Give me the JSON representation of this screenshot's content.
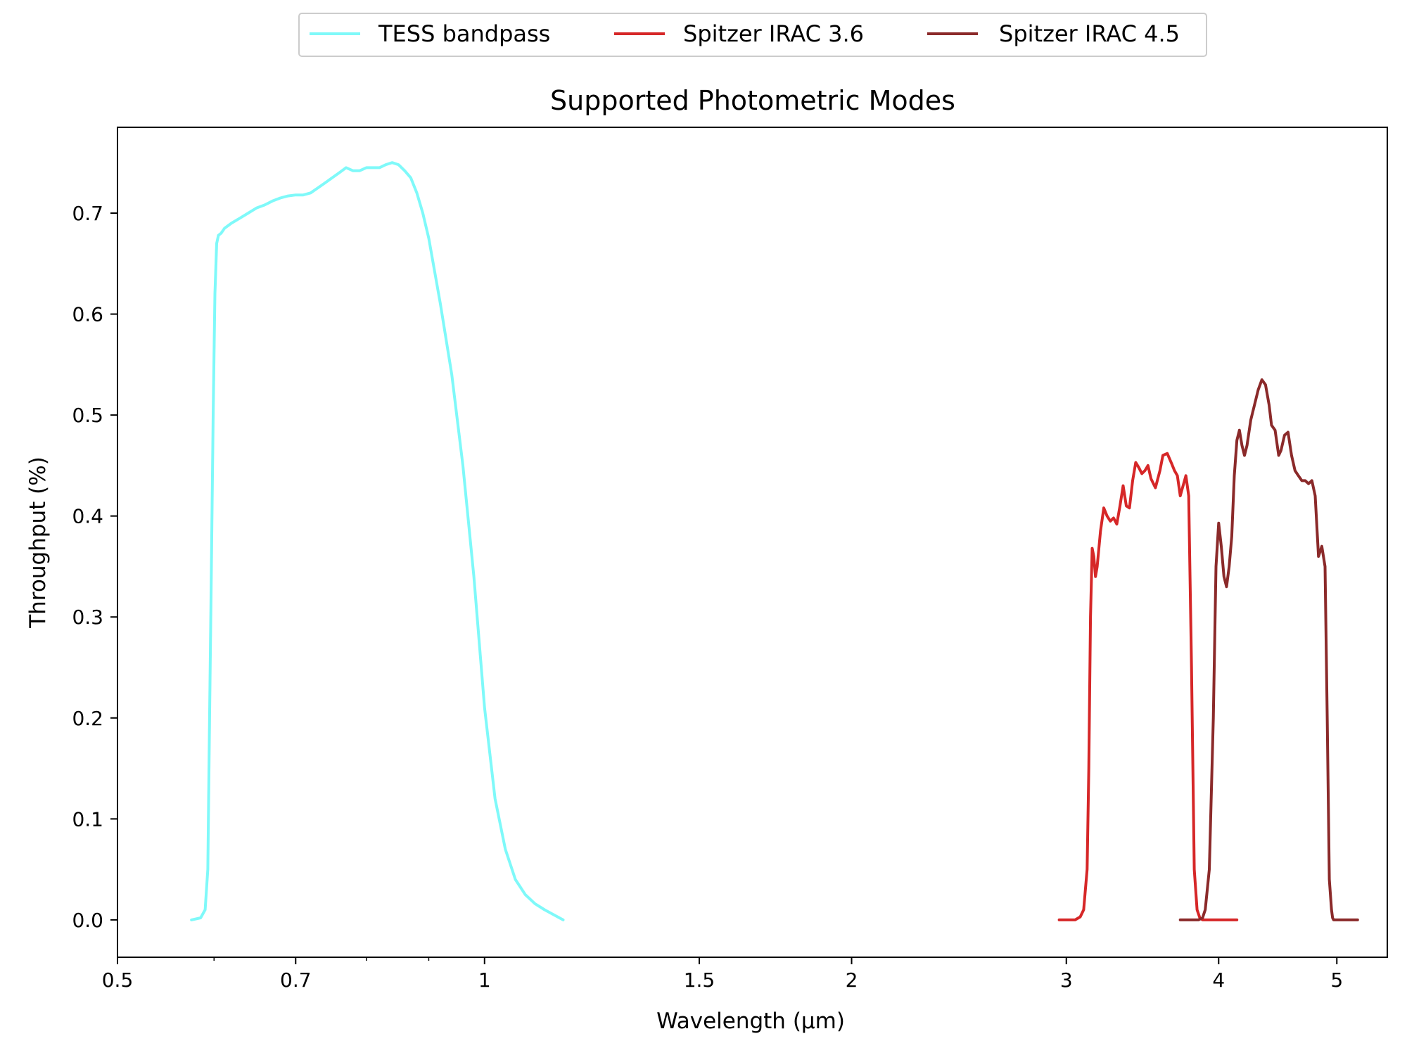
{
  "chart_data": {
    "type": "line",
    "title": "Supported Photometric Modes",
    "xlabel": "Wavelength (μm)",
    "ylabel": "Throughput (%)",
    "x_scale": "log",
    "xlim": [
      0.5,
      5.5
    ],
    "ylim": [
      -0.037,
      0.785
    ],
    "x_ticks": [
      {
        "value": 0.5,
        "label": "0.5"
      },
      {
        "value": 0.7,
        "label": "0.7"
      },
      {
        "value": 1,
        "label": "1"
      },
      {
        "value": 1.5,
        "label": "1.5"
      },
      {
        "value": 2,
        "label": "2"
      },
      {
        "value": 3,
        "label": "3"
      },
      {
        "value": 4,
        "label": "4"
      },
      {
        "value": 5,
        "label": "5"
      }
    ],
    "x_minor_ticks": [
      0.6,
      0.8,
      0.9
    ],
    "y_ticks": [
      {
        "value": 0.0,
        "label": "0.0"
      },
      {
        "value": 0.1,
        "label": "0.1"
      },
      {
        "value": 0.2,
        "label": "0.2"
      },
      {
        "value": 0.3,
        "label": "0.3"
      },
      {
        "value": 0.4,
        "label": "0.4"
      },
      {
        "value": 0.5,
        "label": "0.5"
      },
      {
        "value": 0.6,
        "label": "0.6"
      },
      {
        "value": 0.7,
        "label": "0.7"
      }
    ],
    "grid": false,
    "legend_position": "top-center, outside plot, horizontal",
    "series": [
      {
        "name": "TESS bandpass",
        "color": "#7ff9f9",
        "x": [
          0.575,
          0.585,
          0.59,
          0.593,
          0.595,
          0.597,
          0.599,
          0.601,
          0.603,
          0.605,
          0.608,
          0.612,
          0.62,
          0.63,
          0.64,
          0.65,
          0.66,
          0.67,
          0.68,
          0.69,
          0.7,
          0.71,
          0.72,
          0.73,
          0.74,
          0.75,
          0.76,
          0.77,
          0.78,
          0.79,
          0.8,
          0.81,
          0.82,
          0.83,
          0.84,
          0.85,
          0.86,
          0.87,
          0.88,
          0.89,
          0.9,
          0.92,
          0.94,
          0.96,
          0.98,
          1.0,
          1.02,
          1.04,
          1.06,
          1.08,
          1.1,
          1.12,
          1.14,
          1.16
        ],
        "y": [
          0.0,
          0.002,
          0.01,
          0.05,
          0.2,
          0.35,
          0.5,
          0.62,
          0.67,
          0.678,
          0.68,
          0.685,
          0.69,
          0.695,
          0.7,
          0.705,
          0.708,
          0.712,
          0.715,
          0.717,
          0.718,
          0.718,
          0.72,
          0.725,
          0.73,
          0.735,
          0.74,
          0.745,
          0.742,
          0.742,
          0.745,
          0.745,
          0.745,
          0.748,
          0.75,
          0.748,
          0.742,
          0.735,
          0.72,
          0.7,
          0.675,
          0.61,
          0.54,
          0.45,
          0.34,
          0.21,
          0.12,
          0.07,
          0.04,
          0.025,
          0.016,
          0.01,
          0.005,
          0.0
        ]
      },
      {
        "name": "Spitzer IRAC 3.6",
        "color": "#d62728",
        "x": [
          2.96,
          3.0,
          3.05,
          3.08,
          3.1,
          3.12,
          3.13,
          3.14,
          3.15,
          3.16,
          3.17,
          3.18,
          3.2,
          3.22,
          3.24,
          3.26,
          3.28,
          3.3,
          3.32,
          3.34,
          3.36,
          3.38,
          3.4,
          3.42,
          3.44,
          3.46,
          3.48,
          3.5,
          3.52,
          3.55,
          3.58,
          3.6,
          3.63,
          3.66,
          3.68,
          3.7,
          3.72,
          3.74,
          3.76,
          3.78,
          3.8,
          3.82,
          3.84,
          3.86,
          3.88,
          3.9,
          3.91,
          3.93,
          3.95,
          4.0,
          4.05,
          4.14
        ],
        "y": [
          0.0,
          0.0,
          0.0,
          0.003,
          0.01,
          0.05,
          0.15,
          0.3,
          0.368,
          0.36,
          0.34,
          0.35,
          0.385,
          0.408,
          0.4,
          0.395,
          0.398,
          0.392,
          0.41,
          0.43,
          0.41,
          0.408,
          0.435,
          0.453,
          0.448,
          0.442,
          0.445,
          0.45,
          0.437,
          0.428,
          0.445,
          0.46,
          0.462,
          0.452,
          0.445,
          0.44,
          0.42,
          0.43,
          0.44,
          0.42,
          0.25,
          0.05,
          0.01,
          0.002,
          0.0,
          0.0,
          0.0,
          0.0,
          0.0,
          0.0,
          0.0,
          0.0
        ]
      },
      {
        "name": "Spitzer IRAC 4.5",
        "color": "#8b2a2a",
        "x": [
          3.72,
          3.8,
          3.85,
          3.88,
          3.9,
          3.93,
          3.96,
          3.98,
          4.0,
          4.02,
          4.04,
          4.06,
          4.08,
          4.1,
          4.12,
          4.14,
          4.16,
          4.18,
          4.2,
          4.22,
          4.25,
          4.28,
          4.31,
          4.34,
          4.37,
          4.4,
          4.42,
          4.45,
          4.48,
          4.5,
          4.53,
          4.56,
          4.59,
          4.62,
          4.65,
          4.68,
          4.71,
          4.74,
          4.77,
          4.8,
          4.83,
          4.86,
          4.89,
          4.91,
          4.93,
          4.95,
          4.96,
          4.97,
          4.99,
          5.01,
          5.03,
          5.06,
          5.1,
          5.15,
          5.2
        ],
        "y": [
          0.0,
          0.0,
          0.0,
          0.002,
          0.01,
          0.05,
          0.2,
          0.35,
          0.393,
          0.37,
          0.34,
          0.33,
          0.35,
          0.38,
          0.44,
          0.475,
          0.485,
          0.47,
          0.46,
          0.47,
          0.495,
          0.51,
          0.525,
          0.535,
          0.53,
          0.51,
          0.49,
          0.485,
          0.46,
          0.465,
          0.48,
          0.483,
          0.46,
          0.445,
          0.44,
          0.435,
          0.435,
          0.432,
          0.435,
          0.42,
          0.36,
          0.37,
          0.35,
          0.2,
          0.04,
          0.01,
          0.002,
          0.0,
          0.0,
          0.0,
          0.0,
          0.0,
          0.0,
          0.0,
          0.0
        ]
      }
    ]
  }
}
